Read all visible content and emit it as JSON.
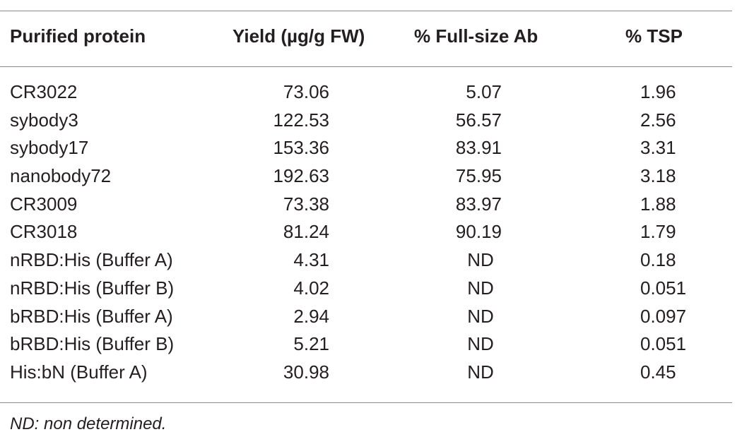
{
  "table": {
    "headers": {
      "protein": "Purified protein",
      "yield": "Yield (µg/g FW)",
      "full_size": "% Full-size Ab",
      "tsp": "% TSP"
    },
    "rows": [
      {
        "protein": "CR3022",
        "yield": "73.06",
        "full_size": "5.07",
        "tsp": "1.96"
      },
      {
        "protein": "sybody3",
        "yield": "122.53",
        "full_size": "56.57",
        "tsp": "2.56"
      },
      {
        "protein": "sybody17",
        "yield": "153.36",
        "full_size": "83.91",
        "tsp": "3.31"
      },
      {
        "protein": "nanobody72",
        "yield": "192.63",
        "full_size": "75.95",
        "tsp": "3.18"
      },
      {
        "protein": "CR3009",
        "yield": "73.38",
        "full_size": "83.97",
        "tsp": "1.88"
      },
      {
        "protein": "CR3018",
        "yield": "81.24",
        "full_size": "90.19",
        "tsp": "1.79"
      },
      {
        "protein": "nRBD:His (Buffer A)",
        "yield": "4.31",
        "full_size": "ND",
        "tsp": "0.18"
      },
      {
        "protein": "nRBD:His (Buffer B)",
        "yield": "4.02",
        "full_size": "ND",
        "tsp": "0.051"
      },
      {
        "protein": "bRBD:His (Buffer A)",
        "yield": "2.94",
        "full_size": "ND",
        "tsp": "0.097"
      },
      {
        "protein": "bRBD:His (Buffer B)",
        "yield": "5.21",
        "full_size": "ND",
        "tsp": "0.051"
      },
      {
        "protein": "His:bN (Buffer A)",
        "yield": "30.98",
        "full_size": "ND",
        "tsp": "0.45"
      }
    ],
    "footnote": "ND: non determined."
  }
}
